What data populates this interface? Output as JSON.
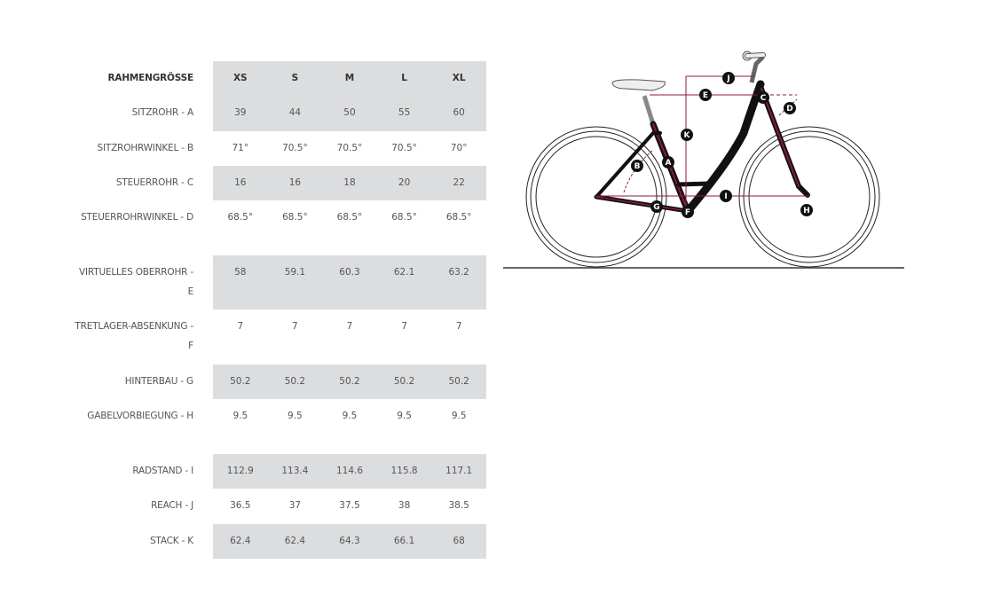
{
  "table": {
    "header": {
      "label": "RAHMENGRÖSSE",
      "sizes": [
        "XS",
        "S",
        "M",
        "L",
        "XL"
      ]
    },
    "rows": [
      {
        "label": "SITZROHR - A",
        "values": [
          "39",
          "44",
          "50",
          "55",
          "60"
        ]
      },
      {
        "label": "SITZROHRWINKEL - B",
        "values": [
          "71°",
          "70.5°",
          "70.5°",
          "70.5°",
          "70°"
        ]
      },
      {
        "label": "STEUERROHR - C",
        "values": [
          "16",
          "16",
          "18",
          "20",
          "22"
        ]
      },
      {
        "label": "STEUERROHRWINKEL - D",
        "values": [
          "68.5°",
          "68.5°",
          "68.5°",
          "68.5°",
          "68.5°"
        ]
      },
      {
        "label": "VIRTUELLES OBERROHR - E",
        "values": [
          "58",
          "59.1",
          "60.3",
          "62.1",
          "63.2"
        ]
      },
      {
        "label": "TRETLAGER-ABSENKUNG - F",
        "values": [
          "7",
          "7",
          "7",
          "7",
          "7"
        ]
      },
      {
        "label": "HINTERBAU - G",
        "values": [
          "50.2",
          "50.2",
          "50.2",
          "50.2",
          "50.2"
        ]
      },
      {
        "label": "GABELVORBIEGUNG - H",
        "values": [
          "9.5",
          "9.5",
          "9.5",
          "9.5",
          "9.5"
        ]
      },
      {
        "label": "RADSTAND - I",
        "values": [
          "112.9",
          "113.4",
          "114.6",
          "115.8",
          "117.1"
        ]
      },
      {
        "label": "REACH - J",
        "values": [
          "36.5",
          "37",
          "37.5",
          "38",
          "38.5"
        ]
      },
      {
        "label": "STACK - K",
        "values": [
          "62.4",
          "62.4",
          "64.3",
          "66.1",
          "68"
        ]
      }
    ]
  },
  "diagram": {
    "markers": [
      "A",
      "B",
      "C",
      "D",
      "E",
      "F",
      "G",
      "H",
      "I",
      "J",
      "K"
    ],
    "accent_color": "#8b1a3c",
    "frame_color": "#111111"
  }
}
